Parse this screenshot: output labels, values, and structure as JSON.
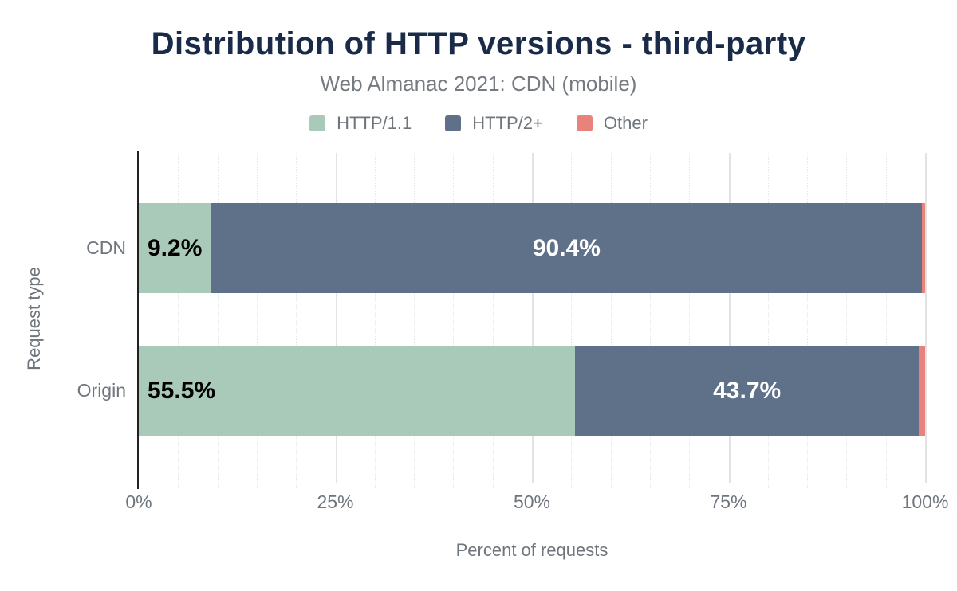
{
  "chart_data": {
    "type": "bar",
    "stacked": true,
    "orientation": "horizontal",
    "title": "Distribution of HTTP versions - third-party",
    "subtitle": "Web Almanac 2021: CDN (mobile)",
    "xlabel": "Percent of requests",
    "ylabel": "Request type",
    "categories": [
      "CDN",
      "Origin"
    ],
    "series": [
      {
        "name": "HTTP/1.1",
        "color": "#a9cab9",
        "values": [
          9.2,
          55.5
        ],
        "labels": [
          "9.2%",
          "55.5%"
        ],
        "label_color": "#000000"
      },
      {
        "name": "HTTP/2+",
        "color": "#5f7089",
        "values": [
          90.4,
          43.7
        ],
        "labels": [
          "90.4%",
          "43.7%"
        ],
        "label_color": "#ffffff"
      },
      {
        "name": "Other",
        "color": "#e8827a",
        "values": [
          0.4,
          0.8
        ],
        "labels": [
          "",
          ""
        ],
        "label_color": "#ffffff"
      }
    ],
    "xlim": [
      0,
      100
    ],
    "x_ticks": [
      {
        "value": 0,
        "label": "0%"
      },
      {
        "value": 25,
        "label": "25%"
      },
      {
        "value": 50,
        "label": "50%"
      },
      {
        "value": 75,
        "label": "75%"
      },
      {
        "value": 100,
        "label": "100%"
      }
    ],
    "grid": {
      "major_every": 25,
      "minor_every": 5,
      "visible": true
    },
    "legend_position": "top",
    "colors": {
      "title": "#1a2b49",
      "axis_text": "#6e757c",
      "axis_line": "#212121",
      "grid_major": "#e3e3e3",
      "grid_minor": "#e7e7e7",
      "background": "#ffffff"
    }
  }
}
